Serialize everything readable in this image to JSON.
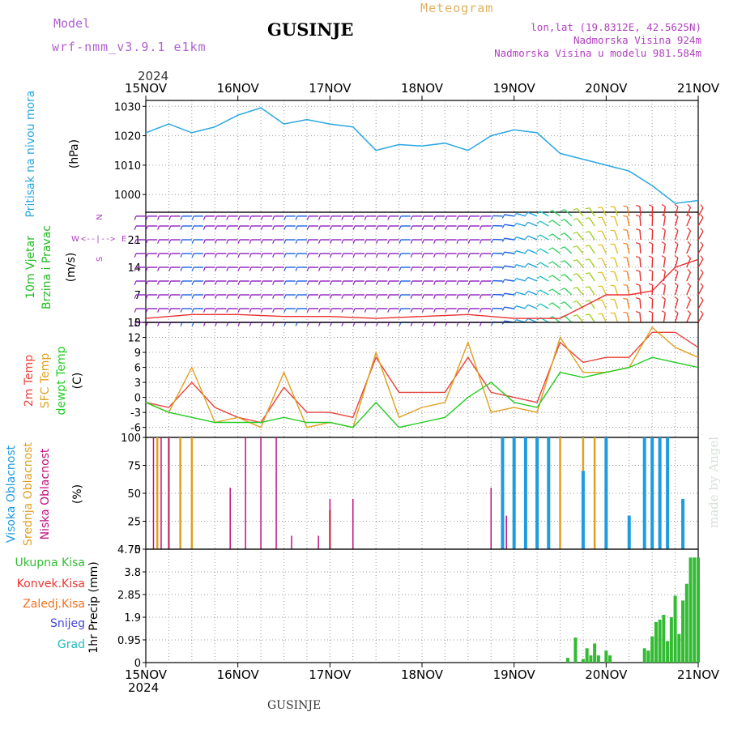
{
  "header": {
    "model_label": "Model",
    "model_name": "wrf-nmm_v3.9.1 e1km",
    "title": "GUSINJE",
    "meteogram_label": "Meteogram",
    "lonlat": "lon,lat (19.8312E, 42.5625N)",
    "altitude": "Nadmorska Visina 924m",
    "model_altitude": "Nadmorska Visina u modelu 981.584m",
    "year_top": "2024",
    "year_bottom": "2024",
    "footer_title": "GUSINJE",
    "watermark": "made by Angel"
  },
  "time_axis": {
    "labels": [
      "15NOV",
      "16NOV",
      "17NOV",
      "18NOV",
      "19NOV",
      "20NOV",
      "21NOV"
    ],
    "start": "2024-11-15T00:00",
    "end": "2024-11-21T00:00"
  },
  "colors": {
    "pressure": "#2aa7e0",
    "temp2m": "#e8423b",
    "sfc_temp": "#e0a020",
    "dewpt": "#22cc22",
    "high_cloud": "#1f9be0",
    "mid_cloud": "#e0a020",
    "low_cloud": "#c01080",
    "total_precip": "#33bb33",
    "convective": "#e33",
    "freezing": "#f07020",
    "snow": "#4444dd",
    "hail": "#22bbbb",
    "wind_label": "#22bb22",
    "wind_dir": "#b040c0"
  },
  "chart_data": [
    {
      "type": "line",
      "panel": "pressure",
      "ylabel_name": "Pritisak na nivou mora",
      "ylabel_unit": "(hPa)",
      "ylim": [
        994,
        1032
      ],
      "yticks": [
        1000,
        1010,
        1020,
        1030
      ],
      "grid": true,
      "series": [
        {
          "name": "Pritisak na nivou mora",
          "x": [
            "2024-11-15T00:00",
            "2024-11-15T06:00",
            "2024-11-15T12:00",
            "2024-11-15T18:00",
            "2024-11-16T00:00",
            "2024-11-16T06:00",
            "2024-11-16T12:00",
            "2024-11-16T18:00",
            "2024-11-17T00:00",
            "2024-11-17T06:00",
            "2024-11-17T12:00",
            "2024-11-17T18:00",
            "2024-11-18T00:00",
            "2024-11-18T06:00",
            "2024-11-18T12:00",
            "2024-11-18T18:00",
            "2024-11-19T00:00",
            "2024-11-19T06:00",
            "2024-11-19T12:00",
            "2024-11-19T18:00",
            "2024-11-20T00:00",
            "2024-11-20T06:00",
            "2024-11-20T12:00",
            "2024-11-20T18:00",
            "2024-11-21T00:00"
          ],
          "y": [
            1021,
            1024,
            1021,
            1023,
            1027,
            1029.5,
            1024,
            1025.5,
            1024,
            1023,
            1015,
            1017,
            1016.5,
            1017.5,
            1015,
            1020,
            1022,
            1021,
            1014,
            1012,
            1010,
            1008,
            1003,
            997,
            998
          ]
        }
      ]
    },
    {
      "type": "wind",
      "panel": "wind",
      "ylabel_name": "10m Vjetar Brzina i Pravac",
      "ylabel_unit": "(m/s)",
      "direction_legend": [
        "N",
        "E",
        "S",
        "W"
      ],
      "ylim": [
        0,
        28
      ],
      "yticks": [
        0,
        7,
        14,
        21
      ],
      "grid": true,
      "series": [
        {
          "name": "Brzina",
          "x": [
            "2024-11-15T00:00",
            "2024-11-15T12:00",
            "2024-11-16T00:00",
            "2024-11-16T12:00",
            "2024-11-17T00:00",
            "2024-11-17T12:00",
            "2024-11-18T00:00",
            "2024-11-18T12:00",
            "2024-11-19T00:00",
            "2024-11-19T12:00",
            "2024-11-19T18:00",
            "2024-11-20T00:00",
            "2024-11-20T06:00",
            "2024-11-20T12:00",
            "2024-11-20T18:00",
            "2024-11-21T00:00"
          ],
          "y": [
            1,
            2,
            2,
            1.5,
            1.5,
            1,
            1.5,
            2,
            1,
            1,
            4,
            7,
            7,
            8,
            14,
            16
          ]
        }
      ]
    },
    {
      "type": "line",
      "panel": "temperature",
      "ylabel_name": "2m Temp / SFC Temp / dewpt Temp",
      "ylabel_unit": "(C)",
      "ylim": [
        -8,
        15
      ],
      "yticks": [
        -6,
        -3,
        0,
        3,
        6,
        9,
        12,
        15
      ],
      "grid": true,
      "series": [
        {
          "name": "2m Temp",
          "x": [
            "2024-11-15T00:00",
            "2024-11-15T06:00",
            "2024-11-15T12:00",
            "2024-11-15T18:00",
            "2024-11-16T00:00",
            "2024-11-16T06:00",
            "2024-11-16T12:00",
            "2024-11-16T18:00",
            "2024-11-17T00:00",
            "2024-11-17T06:00",
            "2024-11-17T12:00",
            "2024-11-17T18:00",
            "2024-11-18T00:00",
            "2024-11-18T06:00",
            "2024-11-18T12:00",
            "2024-11-18T18:00",
            "2024-11-19T00:00",
            "2024-11-19T06:00",
            "2024-11-19T12:00",
            "2024-11-19T18:00",
            "2024-11-20T00:00",
            "2024-11-20T06:00",
            "2024-11-20T12:00",
            "2024-11-20T18:00",
            "2024-11-21T00:00"
          ],
          "y": [
            -1,
            -2,
            3,
            -2,
            -4,
            -5,
            2,
            -3,
            -3,
            -4,
            8,
            1,
            1,
            1,
            8,
            1,
            0,
            -1,
            11,
            7,
            8,
            8,
            13,
            13,
            10
          ]
        },
        {
          "name": "SFC Temp",
          "x": [
            "2024-11-15T00:00",
            "2024-11-15T06:00",
            "2024-11-15T12:00",
            "2024-11-15T18:00",
            "2024-11-16T00:00",
            "2024-11-16T06:00",
            "2024-11-16T12:00",
            "2024-11-16T18:00",
            "2024-11-17T00:00",
            "2024-11-17T06:00",
            "2024-11-17T12:00",
            "2024-11-17T18:00",
            "2024-11-18T00:00",
            "2024-11-18T06:00",
            "2024-11-18T12:00",
            "2024-11-18T18:00",
            "2024-11-19T00:00",
            "2024-11-19T06:00",
            "2024-11-19T12:00",
            "2024-11-19T18:00",
            "2024-11-20T00:00",
            "2024-11-20T06:00",
            "2024-11-20T12:00",
            "2024-11-20T18:00",
            "2024-11-21T00:00"
          ],
          "y": [
            -1,
            -3,
            6,
            -5,
            -4,
            -6,
            5,
            -6,
            -5,
            -6,
            9,
            -4,
            -2,
            -1,
            11,
            -3,
            -2,
            -3,
            12,
            5,
            5,
            6,
            14,
            10,
            8
          ]
        },
        {
          "name": "dewpt Temp",
          "x": [
            "2024-11-15T00:00",
            "2024-11-15T06:00",
            "2024-11-15T12:00",
            "2024-11-15T18:00",
            "2024-11-16T00:00",
            "2024-11-16T06:00",
            "2024-11-16T12:00",
            "2024-11-16T18:00",
            "2024-11-17T00:00",
            "2024-11-17T06:00",
            "2024-11-17T12:00",
            "2024-11-17T18:00",
            "2024-11-18T00:00",
            "2024-11-18T06:00",
            "2024-11-18T12:00",
            "2024-11-18T18:00",
            "2024-11-19T00:00",
            "2024-11-19T06:00",
            "2024-11-19T12:00",
            "2024-11-19T18:00",
            "2024-11-20T00:00",
            "2024-11-20T06:00",
            "2024-11-20T12:00",
            "2024-11-20T18:00",
            "2024-11-21T00:00"
          ],
          "y": [
            -1,
            -3,
            -4,
            -5,
            -5,
            -5,
            -4,
            -5,
            -5,
            -6,
            -1,
            -6,
            -5,
            -4,
            0,
            3,
            -1,
            -2,
            5,
            4,
            5,
            6,
            8,
            7,
            6
          ]
        }
      ]
    },
    {
      "type": "bar",
      "panel": "clouds",
      "ylabel_name": "Visoka Oblacnost / Srednja Oblacnost / Niska Oblacnost",
      "ylabel_unit": "(%)",
      "ylim": [
        0,
        100
      ],
      "yticks": [
        0,
        25,
        50,
        75,
        100
      ],
      "grid": true,
      "series": [
        {
          "name": "Visoka Oblacnost",
          "x": [
            "2024-11-18T21:00",
            "2024-11-19T00:00",
            "2024-11-19T03:00",
            "2024-11-19T06:00",
            "2024-11-19T09:00",
            "2024-11-19T12:00",
            "2024-11-19T18:00",
            "2024-11-20T00:00",
            "2024-11-20T06:00",
            "2024-11-20T10:00",
            "2024-11-20T12:00",
            "2024-11-20T14:00",
            "2024-11-20T16:00",
            "2024-11-20T20:00"
          ],
          "y": [
            100,
            100,
            100,
            100,
            100,
            0,
            70,
            100,
            30,
            100,
            100,
            100,
            100,
            45
          ]
        },
        {
          "name": "Srednja Oblacnost",
          "x": [
            "2024-11-15T03:00",
            "2024-11-15T06:00",
            "2024-11-15T09:00",
            "2024-11-15T12:00",
            "2024-11-17T00:00",
            "2024-11-19T00:00",
            "2024-11-19T03:00",
            "2024-11-19T12:00",
            "2024-11-19T18:00",
            "2024-11-19T21:00",
            "2024-11-20T16:00"
          ],
          "y": [
            100,
            100,
            100,
            100,
            35,
            100,
            100,
            100,
            100,
            100,
            45
          ]
        },
        {
          "name": "Niska Oblacnost",
          "x": [
            "2024-11-15T02:00",
            "2024-11-15T04:00",
            "2024-11-15T06:00",
            "2024-11-15T22:00",
            "2024-11-16T02:00",
            "2024-11-16T06:00",
            "2024-11-16T10:00",
            "2024-11-16T14:00",
            "2024-11-16T21:00",
            "2024-11-17T00:00",
            "2024-11-17T06:00",
            "2024-11-18T18:00",
            "2024-11-18T22:00",
            "2024-11-19T00:00"
          ],
          "y": [
            100,
            100,
            100,
            55,
            100,
            100,
            100,
            12,
            12,
            45,
            45,
            55,
            30,
            100
          ]
        }
      ]
    },
    {
      "type": "bar",
      "panel": "precip",
      "ylabel_name": "1hr Precip",
      "ylabel_unit": "(mm)",
      "legend": [
        "Ukupna Kisa",
        "Konvek.Kisa",
        "Zaledj.Kisa",
        "Snijeg",
        "Grad"
      ],
      "ylim": [
        0,
        4.75
      ],
      "yticks": [
        0,
        0.95,
        1.9,
        2.85,
        3.8,
        4.75
      ],
      "grid": true,
      "series": [
        {
          "name": "Ukupna Kisa",
          "x": [
            "2024-11-19T14:00",
            "2024-11-19T16:00",
            "2024-11-19T18:00",
            "2024-11-19T19:00",
            "2024-11-19T20:00",
            "2024-11-19T21:00",
            "2024-11-19T22:00",
            "2024-11-20T00:00",
            "2024-11-20T01:00",
            "2024-11-20T10:00",
            "2024-11-20T11:00",
            "2024-11-20T12:00",
            "2024-11-20T13:00",
            "2024-11-20T14:00",
            "2024-11-20T15:00",
            "2024-11-20T16:00",
            "2024-11-20T17:00",
            "2024-11-20T18:00",
            "2024-11-20T19:00",
            "2024-11-20T20:00",
            "2024-11-20T21:00",
            "2024-11-20T22:00",
            "2024-11-20T23:00",
            "2024-11-21T00:00"
          ],
          "y": [
            0.2,
            1.05,
            0.15,
            0.6,
            0.3,
            0.8,
            0.3,
            0.5,
            0.3,
            0.6,
            0.5,
            1.1,
            1.7,
            1.8,
            2.0,
            0.9,
            1.9,
            2.8,
            1.2,
            2.6,
            3.3,
            4.4,
            4.4,
            4.4
          ]
        }
      ]
    }
  ]
}
